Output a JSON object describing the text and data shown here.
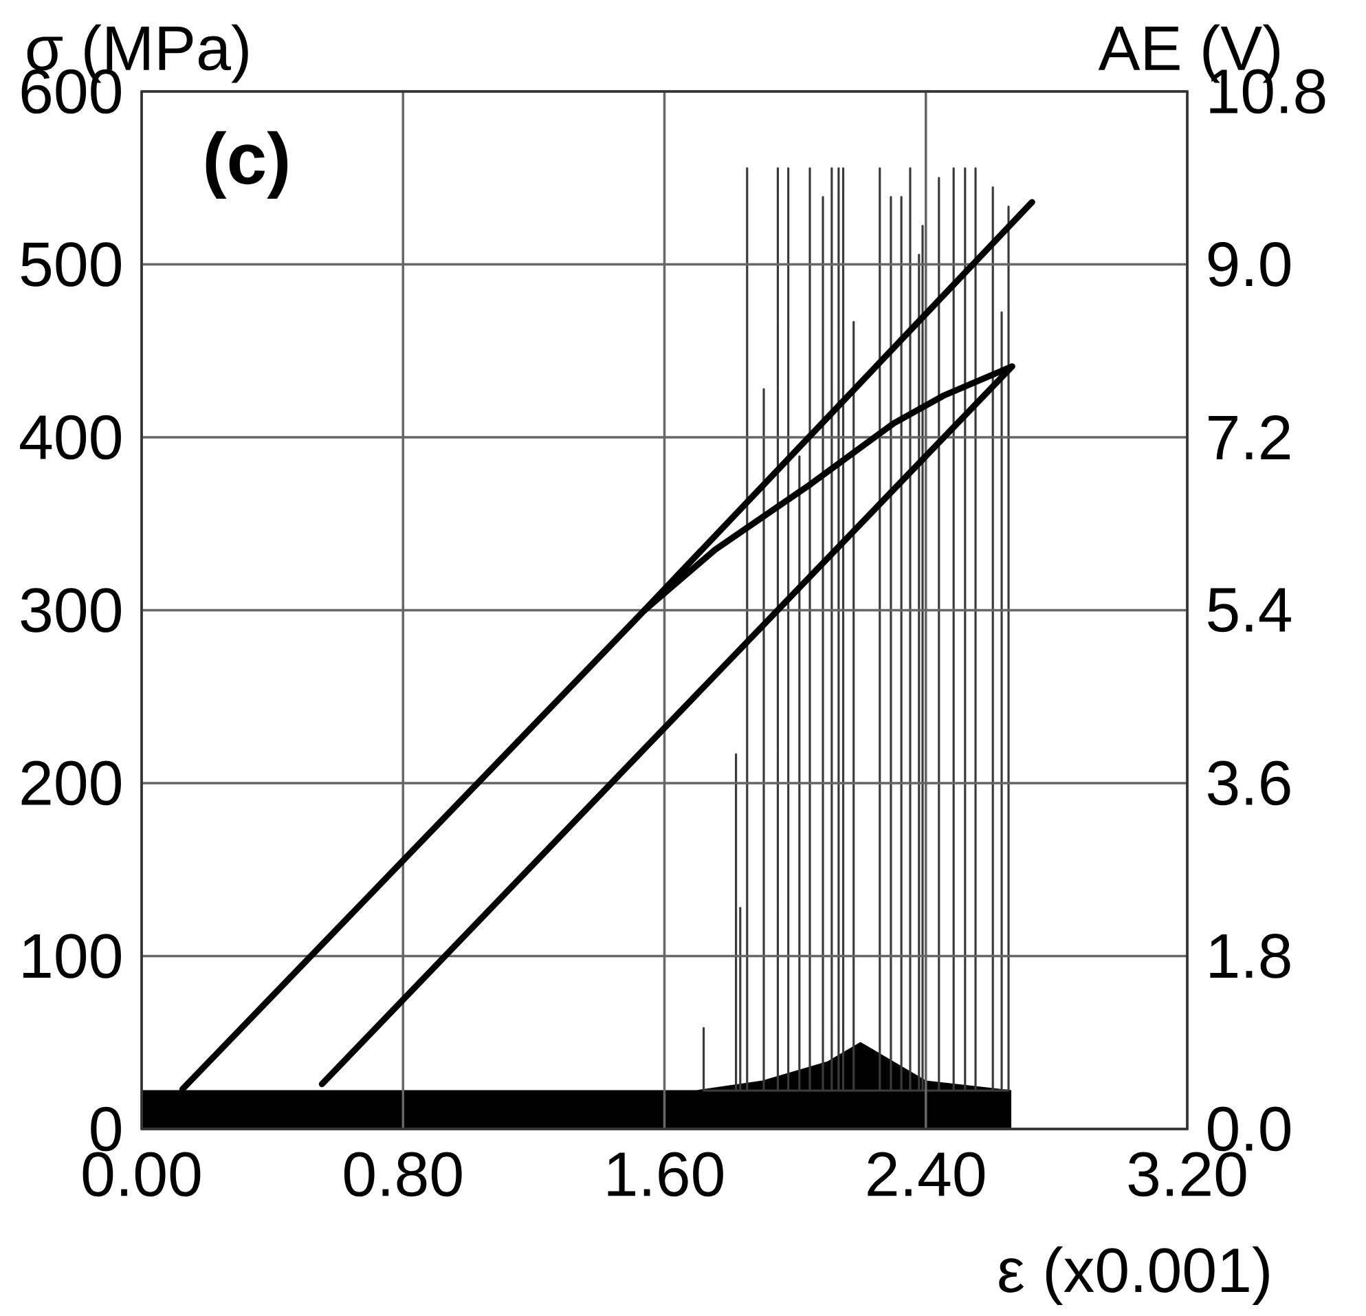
{
  "chart_data": {
    "type": "line",
    "xlabel": "ε  (x0.001)",
    "ylabel": "σ (MPa)",
    "y2label": "AE (V)",
    "annotations": [
      "(c)"
    ],
    "xlim": [
      0,
      3.2
    ],
    "xticks": [
      {
        "value": 0,
        "label": "0.00"
      },
      {
        "value": 0.8,
        "label": "0.80"
      },
      {
        "value": 1.6,
        "label": "1.60"
      },
      {
        "value": 2.4,
        "label": "2.40"
      },
      {
        "value": 3.2,
        "label": "3.20"
      }
    ],
    "ylim": [
      0,
      600
    ],
    "yticks": [
      0,
      100,
      200,
      300,
      400,
      500,
      600
    ],
    "y2lim": [
      0,
      10.8
    ],
    "y2ticks": [
      {
        "value": 0,
        "label": "0.0"
      },
      1.8,
      3.6,
      5.4,
      7.2,
      {
        "value": 9.0,
        "label": "9.0"
      },
      10.8
    ],
    "grid": true,
    "series": [
      {
        "type": "area",
        "axis": "y2",
        "color": "#000000",
        "x": [
          0,
          1.7,
          1.9,
          2.1,
          2.2,
          2.3,
          2.4,
          2.66
        ],
        "values": [
          0.4,
          0.4,
          0.5,
          0.7,
          0.9,
          0.7,
          0.5,
          0.4
        ]
      },
      {
        "type": "line",
        "axis": "y2",
        "color": "#3a3a3a",
        "x": [
          1.72,
          1.72,
          1.72,
          1.819,
          1.819,
          1.819,
          1.832,
          1.832,
          1.832,
          1.853,
          1.853,
          1.853,
          1.904,
          1.904,
          1.904,
          1.947,
          1.947,
          1.947,
          1.979,
          1.979,
          1.979,
          2.013,
          2.013,
          2.013,
          2.045,
          2.045,
          2.045,
          2.085,
          2.085,
          2.085,
          2.112,
          2.112,
          2.112,
          2.133,
          2.133,
          2.133,
          2.147,
          2.147,
          2.147,
          2.179,
          2.179,
          2.179,
          2.259,
          2.259,
          2.259,
          2.293,
          2.293,
          2.293,
          2.325,
          2.325,
          2.325,
          2.352,
          2.352,
          2.352,
          2.379,
          2.379,
          2.379,
          2.39,
          2.39,
          2.39,
          2.44,
          2.44,
          2.44,
          2.485,
          2.485,
          2.485,
          2.52,
          2.52,
          2.52,
          2.552,
          2.552,
          2.552,
          2.605,
          2.605,
          2.605,
          2.632,
          2.632,
          2.632,
          2.653,
          2.653,
          2.653
        ],
        "values": [
          0.4,
          1.05,
          0.4,
          0.4,
          3.9,
          0.4,
          0.4,
          2.3,
          0.4,
          0.4,
          10.0,
          0.4,
          0.4,
          7.7,
          0.4,
          0.4,
          10.0,
          0.4,
          0.4,
          10.0,
          0.4,
          0.4,
          7.0,
          0.4,
          0.4,
          10.0,
          0.4,
          0.4,
          9.7,
          0.4,
          0.4,
          10.0,
          0.4,
          0.4,
          10.0,
          0.4,
          0.4,
          10.0,
          0.4,
          0.4,
          8.4,
          0.4,
          0.4,
          10.0,
          0.4,
          0.4,
          9.7,
          0.4,
          0.4,
          9.7,
          0.4,
          0.4,
          10.0,
          0.4,
          0.4,
          9.1,
          0.4,
          0.4,
          9.4,
          0.4,
          0.4,
          9.9,
          0.4,
          0.4,
          10.0,
          0.4,
          0.4,
          10.0,
          0.4,
          0.4,
          10.0,
          0.4,
          0.4,
          9.8,
          0.4,
          0.4,
          8.5,
          0.4,
          0.4,
          9.6,
          0.4
        ]
      },
      {
        "type": "line",
        "color": "#000000",
        "x": [
          0.125,
          1.539,
          1.755,
          2.048,
          2.301,
          2.453,
          2.664,
          0.552
        ],
        "values": [
          23,
          300,
          335,
          373,
          408,
          424,
          441,
          26
        ]
      },
      {
        "type": "line",
        "color": "#000000",
        "x": [
          1.539,
          2.725
        ],
        "values": [
          300,
          536
        ]
      }
    ]
  }
}
